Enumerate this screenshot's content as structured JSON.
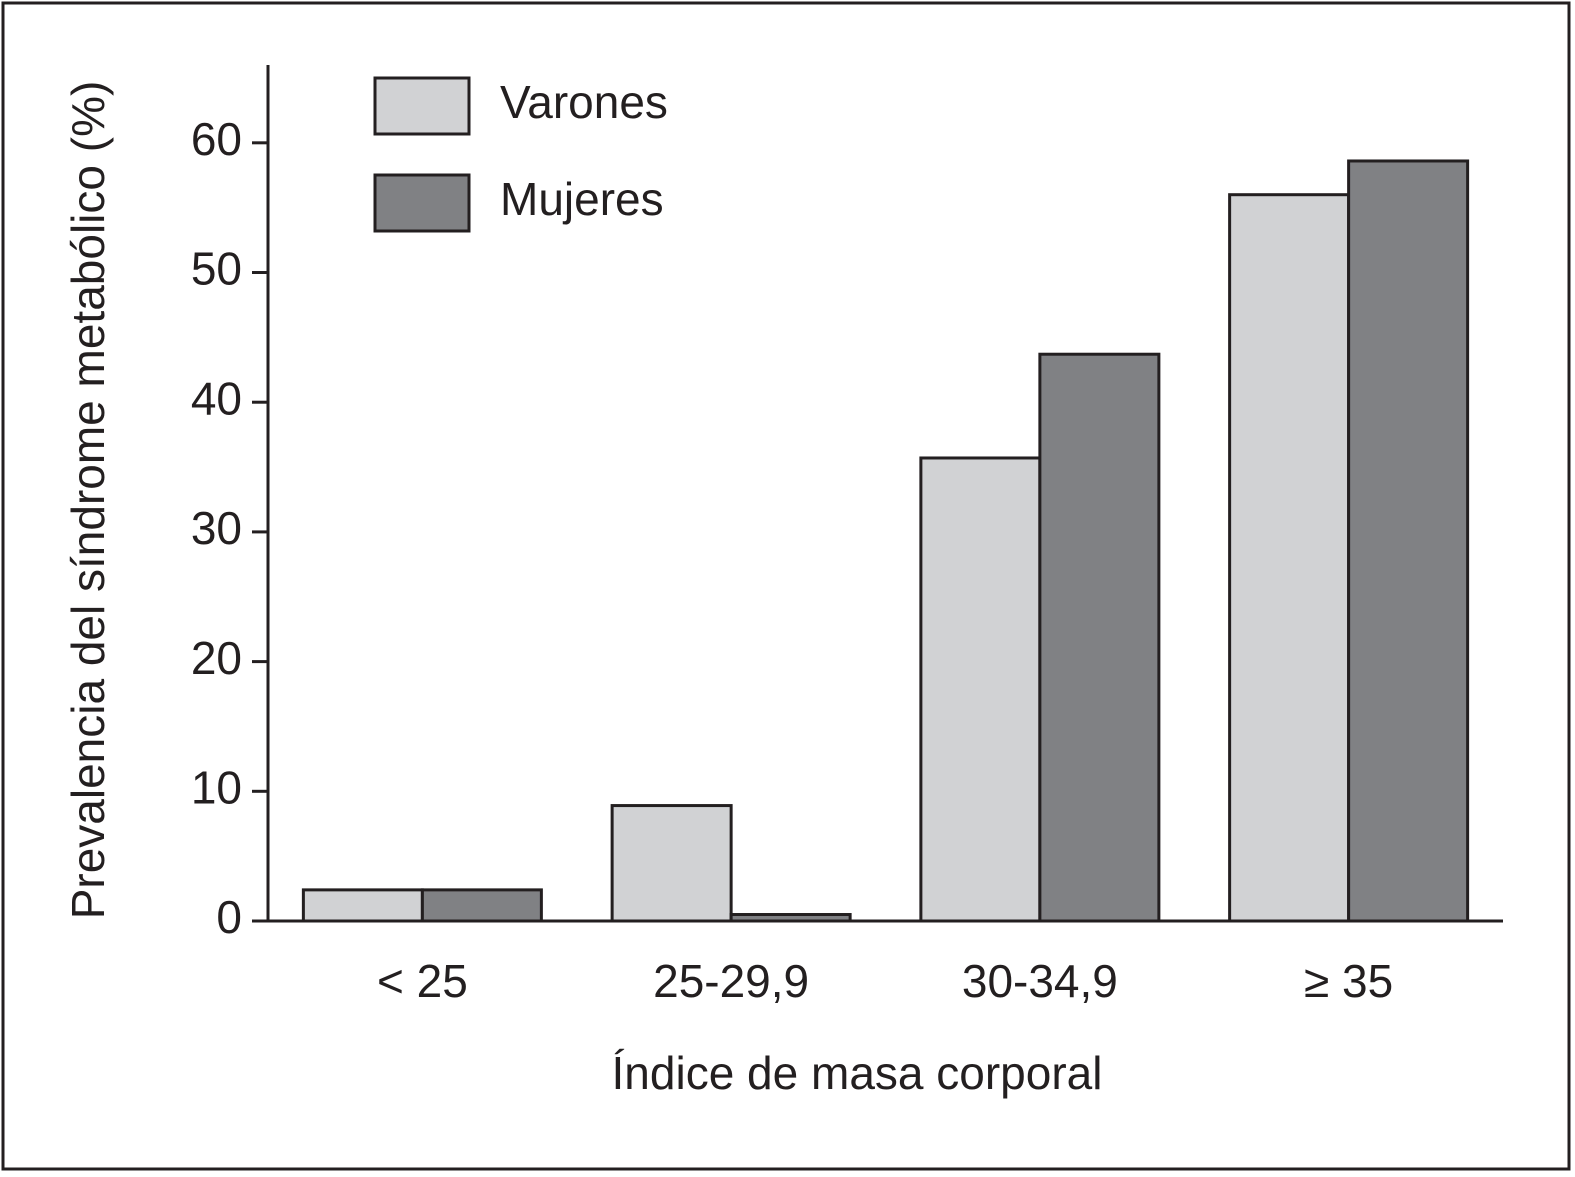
{
  "chart_data": {
    "type": "bar",
    "ylabel": "Prevalencia del síndrome metabólico (%)",
    "xlabel": "Índice de masa corporal",
    "categories": [
      "< 25",
      "25-29,9",
      "30-34,9",
      "≥ 35"
    ],
    "series": [
      {
        "name": "Varones",
        "color": "#d1d2d4",
        "values": [
          2.4,
          8.9,
          35.7,
          56.0
        ]
      },
      {
        "name": "Mujeres",
        "color": "#808184",
        "values": [
          2.4,
          0.5,
          43.7,
          58.6
        ]
      }
    ],
    "ylim": [
      0,
      66
    ],
    "yticks": [
      0,
      10,
      20,
      30,
      40,
      50,
      60
    ],
    "grid": false,
    "legend": "top-left"
  }
}
